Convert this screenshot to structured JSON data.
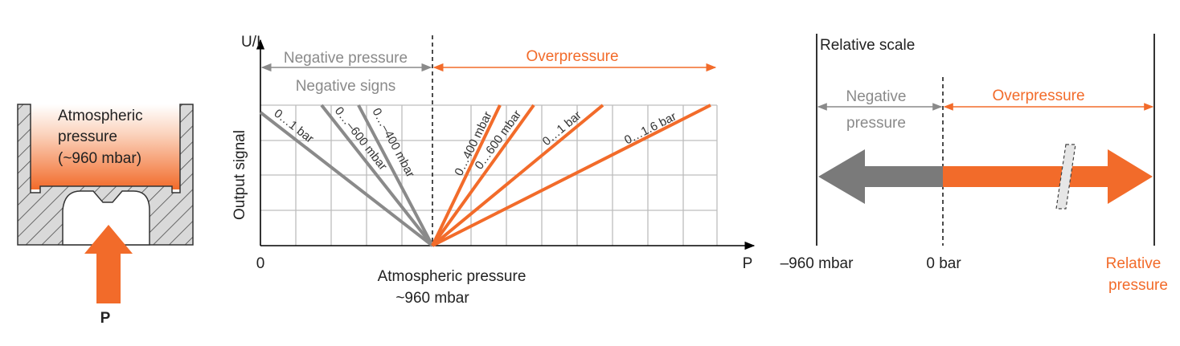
{
  "colors": {
    "orange": "#f26b2a",
    "gray": "#8a8a8a",
    "dark_gray": "#7a7a7a",
    "grid": "#bdbdbd",
    "hatch": "#4a4a4a",
    "housing": "#d9d9d9"
  },
  "left_panel": {
    "chamber_label_line1": "Atmospheric",
    "chamber_label_line2": "pressure",
    "chamber_label_line3": "(~960 mbar)",
    "arrow_label": "P"
  },
  "middle_chart": {
    "y_axis_label": "U/I",
    "y_axis_title": "Output signal",
    "x_axis_label": "P",
    "origin_label": "0",
    "center_label_line1": "Atmospheric pressure",
    "center_label_line2": "~960 mbar",
    "negative_pressure_label": "Negative pressure",
    "negative_signs_label": "Negative signs",
    "overpressure_label": "Overpressure"
  },
  "chart_data": {
    "type": "line",
    "negative_ranges": [
      "0…1 bar",
      "0…–600 mbar",
      "0…–400 mbar"
    ],
    "positive_ranges": [
      "0…400 mbar",
      "0…600 mbar",
      "0…1 bar",
      "0…1.6 bar"
    ]
  },
  "right_panel": {
    "title": "Relative scale",
    "negative_label_line1": "Negative",
    "negative_label_line2": "pressure",
    "overpressure_label": "Overpressure",
    "left_tick_label": "–960 mbar",
    "center_tick_label": "0 bar",
    "right_label_line1": "Relative",
    "right_label_line2": "pressure"
  }
}
